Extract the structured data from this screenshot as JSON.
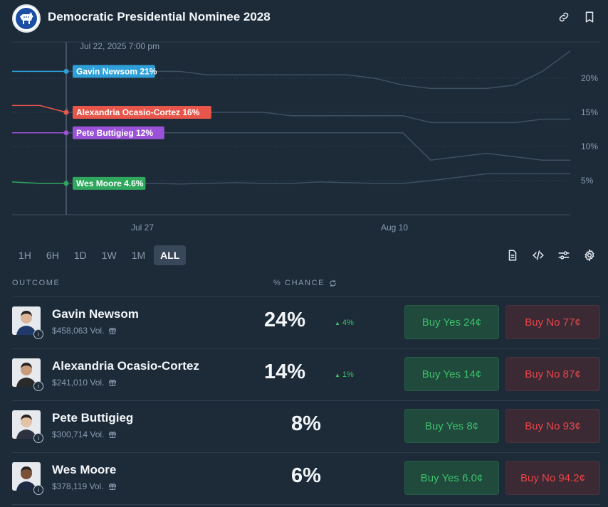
{
  "header": {
    "title": "Democratic Presidential Nominee 2028",
    "logo_icon": "donkey-logo",
    "icons": [
      "link-icon",
      "bookmark-icon"
    ]
  },
  "chart_data": {
    "type": "line",
    "hover_label": "Jul 22, 2025 7:00 pm",
    "x_ticks": [
      "Jul 27",
      "Aug 10"
    ],
    "y_ticks": [
      "20%",
      "15%",
      "10%",
      "5%"
    ],
    "series": [
      {
        "name": "Gavin Newsom",
        "label": "Gavin Newsom 21%",
        "color": "#2e9fd8",
        "values": [
          21,
          21,
          21,
          21,
          21,
          21,
          21,
          20.5,
          20.5,
          20.5,
          20.5,
          20.5,
          20.5,
          20,
          19,
          18.5,
          18.5,
          18.5,
          19,
          21,
          24
        ]
      },
      {
        "name": "Alexandria Ocasio-Cortez",
        "label": "Alexandria Ocasio-Cortez 16%",
        "color": "#e8564b",
        "values": [
          16,
          16,
          15,
          15,
          15,
          15,
          15,
          15,
          15,
          15,
          14.5,
          14.5,
          14.5,
          14.5,
          14.5,
          13.5,
          13.5,
          13.5,
          13.5,
          14,
          14
        ]
      },
      {
        "name": "Pete Buttigieg",
        "label": "Pete Buttigieg 12%",
        "color": "#9b52d6",
        "values": [
          12,
          12,
          12,
          12,
          12,
          12,
          12,
          12,
          12,
          12,
          12,
          12,
          12,
          12,
          12,
          8,
          8.5,
          9,
          8.5,
          8,
          8
        ]
      },
      {
        "name": "Wes Moore",
        "label": "Wes Moore 4.6%",
        "color": "#2fa85e",
        "values": [
          4.8,
          4.6,
          4.6,
          4.6,
          4.6,
          4.6,
          4.5,
          4.6,
          4.7,
          4.6,
          4.6,
          4.8,
          4.7,
          4.6,
          4.6,
          5.0,
          5.5,
          6.0,
          6.0,
          6.0,
          6.0
        ]
      }
    ],
    "ylim": [
      0,
      25
    ]
  },
  "ranges": [
    "1H",
    "6H",
    "1D",
    "1W",
    "1M",
    "ALL"
  ],
  "active_range": "ALL",
  "tools": [
    "document-icon",
    "code-icon",
    "sliders-icon",
    "gear-icon"
  ],
  "table": {
    "col_outcome": "OUTCOME",
    "col_chance": "% CHANCE",
    "rows": [
      {
        "name": "Gavin Newsom",
        "vol": "$458,063 Vol.",
        "pct": "24%",
        "change": "4%",
        "yes": "Buy Yes 24¢",
        "no": "Buy No 77¢",
        "shirt": "#1f3a6b",
        "skin": "#d9b69a"
      },
      {
        "name": "Alexandria Ocasio-Cortez",
        "vol": "$241,010 Vol.",
        "pct": "14%",
        "change": "1%",
        "yes": "Buy Yes 14¢",
        "no": "Buy No 87¢",
        "shirt": "#2a2a2a",
        "skin": "#c99c7c"
      },
      {
        "name": "Pete Buttigieg",
        "vol": "$300,714 Vol.",
        "pct": "8%",
        "change": "",
        "yes": "Buy Yes 8¢",
        "no": "Buy No 93¢",
        "shirt": "#2e3240",
        "skin": "#e2c3a8"
      },
      {
        "name": "Wes Moore",
        "vol": "$378,119 Vol.",
        "pct": "6%",
        "change": "",
        "yes": "Buy Yes 6.0¢",
        "no": "Buy No 94.2¢",
        "shirt": "#1e2a44",
        "skin": "#7a5238"
      }
    ]
  },
  "colors": {
    "yes": "#3fbf6b",
    "no": "#e8454b",
    "bg": "#1d2b39"
  }
}
